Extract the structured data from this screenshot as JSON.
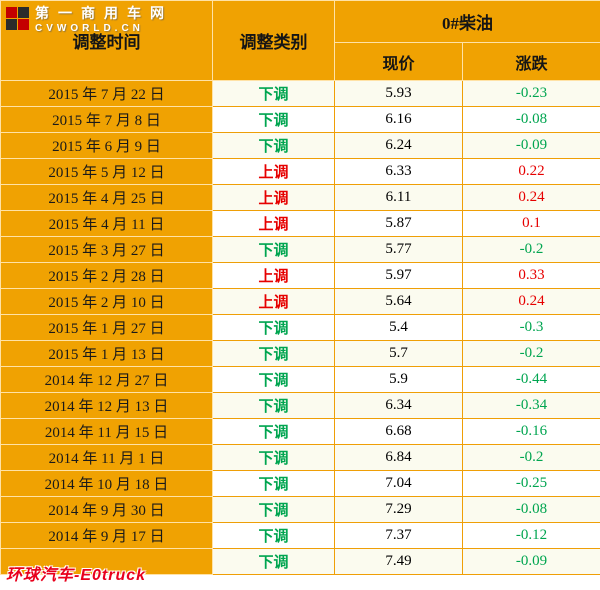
{
  "logo": {
    "line1": "第一商用车网",
    "line2": "CVWORLD.CN"
  },
  "watermark": {
    "text": "环球汽车-E0truck"
  },
  "colors": {
    "accent_orange": "#F0A202",
    "up_red": "#E60000",
    "down_green": "#00A550"
  },
  "chart_data": {
    "type": "table",
    "title": "0#柴油",
    "columns": [
      "调整时间",
      "调整类别",
      "现价",
      "涨跌"
    ],
    "rows": [
      {
        "date": "2015 年 7 月 22 日",
        "category": "下调",
        "direction": "down",
        "price": "5.93",
        "change": "-0.23"
      },
      {
        "date": "2015 年 7 月 8 日",
        "category": "下调",
        "direction": "down",
        "price": "6.16",
        "change": "-0.08"
      },
      {
        "date": "2015 年 6 月 9 日",
        "category": "下调",
        "direction": "down",
        "price": "6.24",
        "change": "-0.09"
      },
      {
        "date": "2015 年 5 月 12 日",
        "category": "上调",
        "direction": "up",
        "price": "6.33",
        "change": "0.22"
      },
      {
        "date": "2015 年 4 月 25 日",
        "category": "上调",
        "direction": "up",
        "price": "6.11",
        "change": "0.24"
      },
      {
        "date": "2015 年 4 月 11 日",
        "category": "上调",
        "direction": "up",
        "price": "5.87",
        "change": "0.1"
      },
      {
        "date": "2015 年 3 月 27 日",
        "category": "下调",
        "direction": "down",
        "price": "5.77",
        "change": "-0.2"
      },
      {
        "date": "2015 年 2 月 28 日",
        "category": "上调",
        "direction": "up",
        "price": "5.97",
        "change": "0.33"
      },
      {
        "date": "2015 年 2 月 10 日",
        "category": "上调",
        "direction": "up",
        "price": "5.64",
        "change": "0.24"
      },
      {
        "date": "2015 年 1 月 27 日",
        "category": "下调",
        "direction": "down",
        "price": "5.4",
        "change": "-0.3"
      },
      {
        "date": "2015 年 1 月 13 日",
        "category": "下调",
        "direction": "down",
        "price": "5.7",
        "change": "-0.2"
      },
      {
        "date": "2014 年 12 月 27 日",
        "category": "下调",
        "direction": "down",
        "price": "5.9",
        "change": "-0.44"
      },
      {
        "date": "2014 年 12 月 13 日",
        "category": "下调",
        "direction": "down",
        "price": "6.34",
        "change": "-0.34"
      },
      {
        "date": "2014 年 11 月 15 日",
        "category": "下调",
        "direction": "down",
        "price": "6.68",
        "change": "-0.16"
      },
      {
        "date": "2014 年 11 月 1 日",
        "category": "下调",
        "direction": "down",
        "price": "6.84",
        "change": "-0.2"
      },
      {
        "date": "2014 年 10 月 18 日",
        "category": "下调",
        "direction": "down",
        "price": "7.04",
        "change": "-0.25"
      },
      {
        "date": "2014 年 9 月 30 日",
        "category": "下调",
        "direction": "down",
        "price": "7.29",
        "change": "-0.08"
      },
      {
        "date": "2014 年 9 月 17 日",
        "category": "下调",
        "direction": "down",
        "price": "7.37",
        "change": "-0.12"
      },
      {
        "date": "",
        "category": "下调",
        "direction": "down",
        "price": "7.49",
        "change": "-0.09"
      }
    ]
  }
}
